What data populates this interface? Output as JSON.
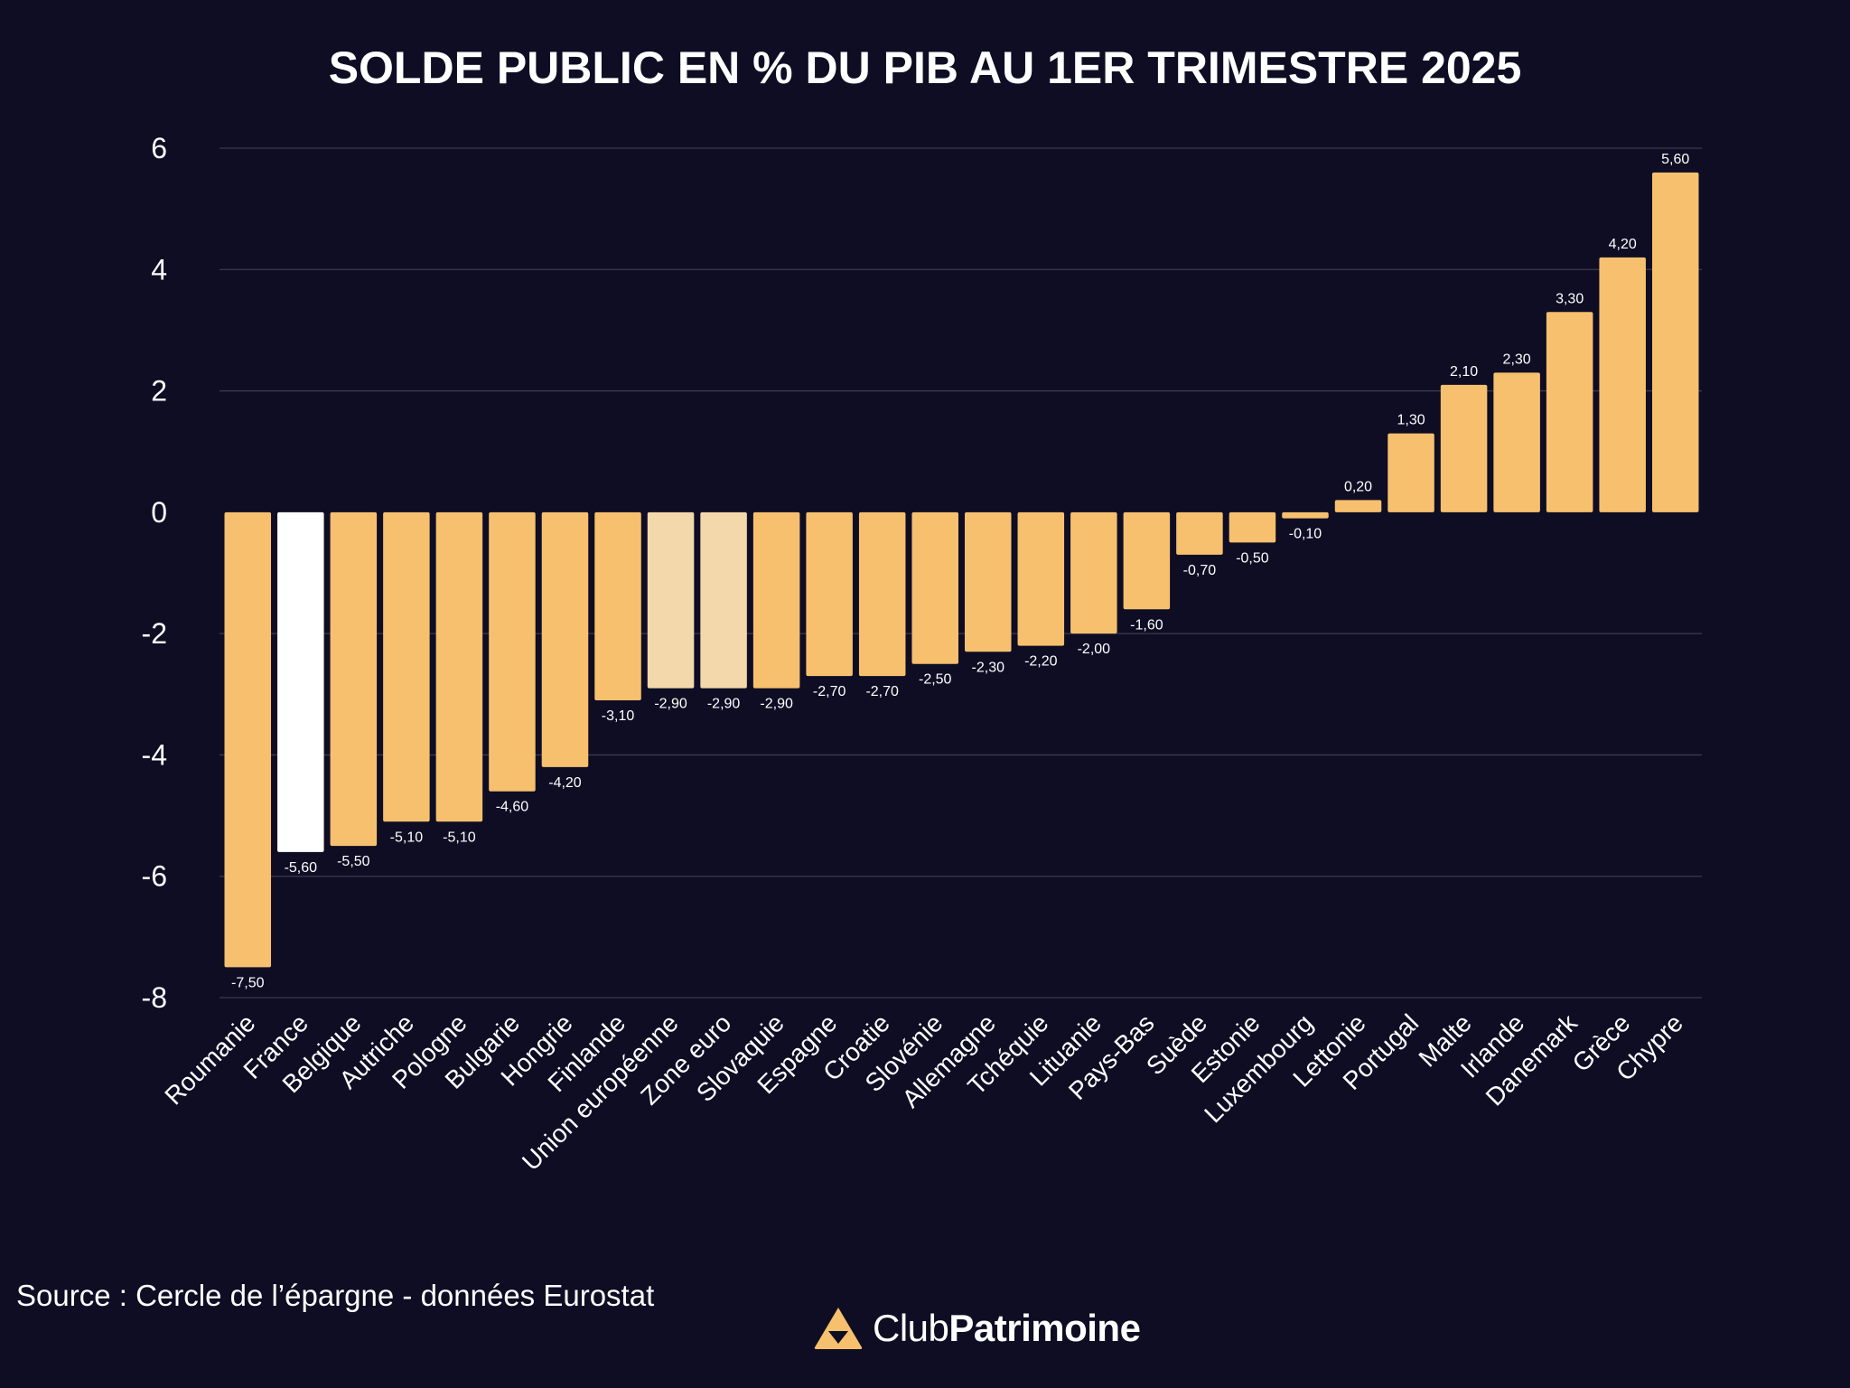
{
  "chart_data": {
    "type": "bar",
    "title": "SOLDE PUBLIC EN % DU PIB AU 1ER TRIMESTRE 2025",
    "categories": [
      "Roumanie",
      "France",
      "Belgique",
      "Autriche",
      "Pologne",
      "Bulgarie",
      "Hongrie",
      "Finlande",
      "Union européenne",
      "Zone euro",
      "Slovaquie",
      "Espagne",
      "Croatie",
      "Slovénie",
      "Allemagne",
      "Tchéquie",
      "Lituanie",
      "Pays-Bas",
      "Suède",
      "Estonie",
      "Luxembourg",
      "Lettonie",
      "Portugal",
      "Malte",
      "Irlande",
      "Danemark",
      "Grèce",
      "Chypre"
    ],
    "values": [
      -7.5,
      -5.6,
      -5.5,
      -5.1,
      -5.1,
      -4.6,
      -4.2,
      -3.1,
      -2.9,
      -2.9,
      -2.9,
      -2.7,
      -2.7,
      -2.5,
      -2.3,
      -2.2,
      -2.0,
      -1.6,
      -0.7,
      -0.5,
      -0.1,
      0.2,
      1.3,
      2.1,
      2.3,
      3.3,
      4.2,
      5.6
    ],
    "data_labels": [
      "-7,50",
      "-5,60",
      "-5,50",
      "-5,10",
      "-5,10",
      "-4,60",
      "-4,20",
      "-3,10",
      "-2,90",
      "-2,90",
      "-2,90",
      "-2,70",
      "-2,70",
      "-2,50",
      "-2,30",
      "-2,20",
      "-2,00",
      "-1,60",
      "-0,70",
      "-0,50",
      "-0,10",
      "0,20",
      "1,30",
      "2,10",
      "2,30",
      "3,30",
      "4,20",
      "5,60"
    ],
    "highlight": {
      "France": "#ffffff",
      "Union européenne": "#f3d8ab",
      "Zone euro": "#f3d8ab"
    },
    "bar_color": "#f6c06e",
    "ylim": [
      -8,
      6
    ],
    "yticks": [
      6,
      4,
      2,
      0,
      -2,
      -4,
      -6,
      -8
    ],
    "grid": true,
    "xlabel": "",
    "ylabel": ""
  },
  "footer": {
    "source": "Source : Cercle de l’épargne - données Eurostat",
    "brand_part1": "Club",
    "brand_part2": "Patrimoine"
  },
  "colors": {
    "background": "#0e0d24",
    "grid": "#3a3950",
    "logo": "#f6c06e"
  },
  "icons": {
    "logo": "club-patrimoine-logo-icon"
  }
}
